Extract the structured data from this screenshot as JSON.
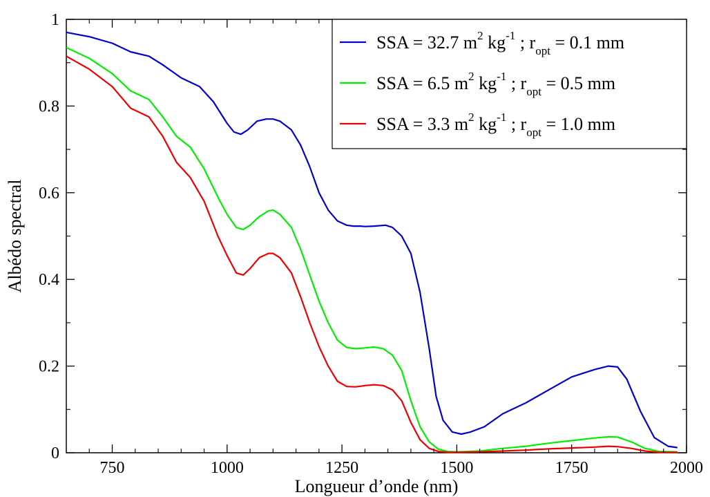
{
  "chart_data": {
    "type": "line",
    "xlabel": "Longueur d’onde (nm)",
    "ylabel": "Albédo spectral",
    "xlim": [
      650,
      2000
    ],
    "ylim": [
      0,
      1
    ],
    "x_ticks": [
      750,
      1000,
      1250,
      1500,
      1750,
      2000
    ],
    "y_ticks": [
      0,
      0.2,
      0.4,
      0.6,
      0.8,
      1
    ],
    "x_tick_labels": [
      "750",
      "1000",
      "1250",
      "1500",
      "1750",
      "2000"
    ],
    "y_tick_labels": [
      "0",
      "0.2",
      "0.4",
      "0.6",
      "0.8",
      "1"
    ],
    "grid": false,
    "legend_position": "top-right",
    "series": [
      {
        "name": "SSA = 32.7 m2 kg-1 ; ropt = 0.1 mm",
        "legend": {
          "a": "SSA = 32.7 m",
          "sup1": "2",
          "b": " kg",
          "sup2": "-1",
          "c": " ; r",
          "sub": "opt",
          "d": " = 0.1 mm"
        },
        "color": "#0000cc",
        "x": [
          650,
          700,
          750,
          790,
          830,
          860,
          900,
          940,
          970,
          1000,
          1015,
          1030,
          1045,
          1065,
          1085,
          1100,
          1115,
          1140,
          1160,
          1180,
          1200,
          1220,
          1240,
          1260,
          1275,
          1290,
          1300,
          1320,
          1345,
          1360,
          1380,
          1400,
          1420,
          1440,
          1455,
          1470,
          1490,
          1510,
          1530,
          1560,
          1600,
          1650,
          1700,
          1750,
          1800,
          1830,
          1850,
          1870,
          1900,
          1930,
          1960,
          1980
        ],
        "y": [
          0.97,
          0.96,
          0.945,
          0.925,
          0.915,
          0.895,
          0.865,
          0.845,
          0.81,
          0.76,
          0.74,
          0.735,
          0.745,
          0.765,
          0.77,
          0.77,
          0.765,
          0.745,
          0.71,
          0.66,
          0.6,
          0.56,
          0.535,
          0.525,
          0.523,
          0.523,
          0.522,
          0.523,
          0.525,
          0.52,
          0.5,
          0.46,
          0.37,
          0.24,
          0.13,
          0.075,
          0.048,
          0.043,
          0.048,
          0.06,
          0.09,
          0.115,
          0.145,
          0.175,
          0.192,
          0.2,
          0.198,
          0.17,
          0.095,
          0.035,
          0.015,
          0.012
        ]
      },
      {
        "name": "SSA = 6.5 m2 kg-1 ; ropt = 0.5 mm",
        "legend": {
          "a": "SSA = 6.5 m",
          "sup1": "2",
          "b": " kg",
          "sup2": "-1",
          "c": " ; r",
          "sub": "opt",
          "d": " = 0.5 mm"
        },
        "color": "#00ee00",
        "x": [
          650,
          700,
          750,
          790,
          830,
          860,
          890,
          920,
          950,
          980,
          1000,
          1020,
          1035,
          1050,
          1070,
          1090,
          1100,
          1115,
          1140,
          1160,
          1180,
          1200,
          1220,
          1240,
          1260,
          1280,
          1300,
          1320,
          1340,
          1360,
          1380,
          1400,
          1420,
          1440,
          1460,
          1480,
          1500,
          1550,
          1600,
          1650,
          1700,
          1750,
          1800,
          1830,
          1850,
          1880,
          1910,
          1940,
          1980
        ],
        "y": [
          0.935,
          0.91,
          0.875,
          0.835,
          0.815,
          0.775,
          0.73,
          0.705,
          0.655,
          0.59,
          0.55,
          0.52,
          0.515,
          0.525,
          0.545,
          0.558,
          0.56,
          0.55,
          0.52,
          0.47,
          0.41,
          0.35,
          0.3,
          0.26,
          0.243,
          0.24,
          0.242,
          0.244,
          0.24,
          0.225,
          0.19,
          0.12,
          0.06,
          0.025,
          0.008,
          0.003,
          0.002,
          0.004,
          0.01,
          0.015,
          0.022,
          0.028,
          0.034,
          0.037,
          0.036,
          0.025,
          0.01,
          0.003,
          0.002
        ]
      },
      {
        "name": "SSA = 3.3 m2 kg-1 ; ropt = 1.0 mm",
        "legend": {
          "a": "SSA = 3.3 m",
          "sup1": "2",
          "b": " kg",
          "sup2": "-1",
          "c": " ; r",
          "sub": "opt",
          "d": " = 1.0 mm"
        },
        "color": "#ee0000",
        "x": [
          650,
          700,
          750,
          790,
          830,
          860,
          890,
          920,
          950,
          980,
          1000,
          1020,
          1035,
          1050,
          1070,
          1090,
          1100,
          1115,
          1140,
          1160,
          1180,
          1200,
          1220,
          1240,
          1260,
          1280,
          1300,
          1320,
          1340,
          1360,
          1380,
          1400,
          1420,
          1440,
          1460,
          1480,
          1500,
          1550,
          1600,
          1650,
          1700,
          1750,
          1800,
          1830,
          1850,
          1880,
          1910,
          1940,
          1980
        ],
        "y": [
          0.915,
          0.885,
          0.845,
          0.795,
          0.775,
          0.73,
          0.67,
          0.635,
          0.58,
          0.5,
          0.455,
          0.415,
          0.41,
          0.425,
          0.45,
          0.46,
          0.46,
          0.45,
          0.415,
          0.36,
          0.3,
          0.245,
          0.2,
          0.165,
          0.153,
          0.152,
          0.155,
          0.157,
          0.155,
          0.145,
          0.12,
          0.07,
          0.03,
          0.01,
          0.003,
          0.001,
          0.001,
          0.002,
          0.004,
          0.006,
          0.009,
          0.011,
          0.013,
          0.015,
          0.014,
          0.01,
          0.004,
          0.001,
          0.001
        ]
      }
    ]
  }
}
